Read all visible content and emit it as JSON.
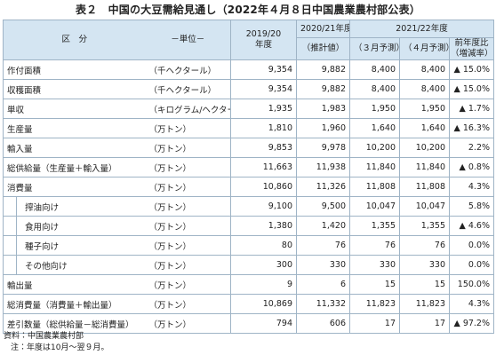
{
  "title": "表２　中国の大豆需給見通し（2022年４月８日中国農業農村部公表）",
  "table": {
    "header": {
      "section": "区　分",
      "unit": "－単位－",
      "fy2019": [
        "2019/20",
        "年度"
      ],
      "fy2020": "2020/21年度",
      "fy2020_sub": "（推計値）",
      "fy2021": "2021/22年度",
      "march": "（３月予測）",
      "april": "（４月予測）",
      "change": [
        "前年度比",
        "（増減率）"
      ]
    },
    "rows": [
      {
        "label": "作付面積",
        "unit": "（千ヘクタール）",
        "values": [
          "9,354",
          "9,882",
          "8,400",
          "8,400",
          "▲ 15.0%"
        ]
      },
      {
        "label": "収穫面積",
        "unit": "（千ヘクタール）",
        "values": [
          "9,354",
          "9,882",
          "8,400",
          "8,400",
          "▲ 15.0%"
        ]
      },
      {
        "label": "単収",
        "unit": "（キログラム/ヘクタール）",
        "values": [
          "1,935",
          "1,983",
          "1,950",
          "1,950",
          "▲ 1.7%"
        ]
      },
      {
        "label": "生産量",
        "unit": "（万トン）",
        "values": [
          "1,810",
          "1,960",
          "1,640",
          "1,640",
          "▲ 16.3%"
        ]
      },
      {
        "label": "輸入量",
        "unit": "（万トン）",
        "values": [
          "9,853",
          "9,978",
          "10,200",
          "10,200",
          "2.2%"
        ]
      },
      {
        "label": "総供給量（生産量＋輸入量）",
        "unit": "（万トン）",
        "values": [
          "11,663",
          "11,938",
          "11,840",
          "11,840",
          "▲ 0.8%"
        ]
      },
      {
        "label": "消費量",
        "unit": "（万トン）",
        "values": [
          "10,860",
          "11,326",
          "11,808",
          "11,808",
          "4.3%"
        ],
        "items": [
          {
            "label": "搾油向け",
            "unit": "（万トン）",
            "values": [
              "9,100",
              "9,500",
              "10,047",
              "10,047",
              "5.8%"
            ]
          },
          {
            "label": "食用向け",
            "unit": "（万トン）",
            "values": [
              "1,380",
              "1,420",
              "1,355",
              "1,355",
              "▲ 4.6%"
            ]
          },
          {
            "label": "種子向け",
            "unit": "（万トン）",
            "values": [
              "80",
              "76",
              "76",
              "76",
              "0.0%"
            ]
          },
          {
            "label": "その他向け",
            "unit": "（万トン）",
            "values": [
              "300",
              "330",
              "330",
              "330",
              "0.0%"
            ]
          }
        ]
      },
      {
        "label": "輸出量",
        "unit": "（万トン）",
        "values": [
          "9",
          "6",
          "15",
          "15",
          "150.0%"
        ]
      },
      {
        "label": "総消費量（消費量＋輸出量）",
        "unit": "（万トン）",
        "values": [
          "10,869",
          "11,332",
          "11,823",
          "11,823",
          "4.3%"
        ]
      },
      {
        "label": "差引数量（総供給量－総消費量）",
        "unit": "（万トン）",
        "values": [
          "794",
          "606",
          "17",
          "17",
          "▲ 97.2%"
        ]
      }
    ]
  },
  "notes": [
    "資料：中国農業農村部",
    "注：年度は10月～翌９月。"
  ]
}
